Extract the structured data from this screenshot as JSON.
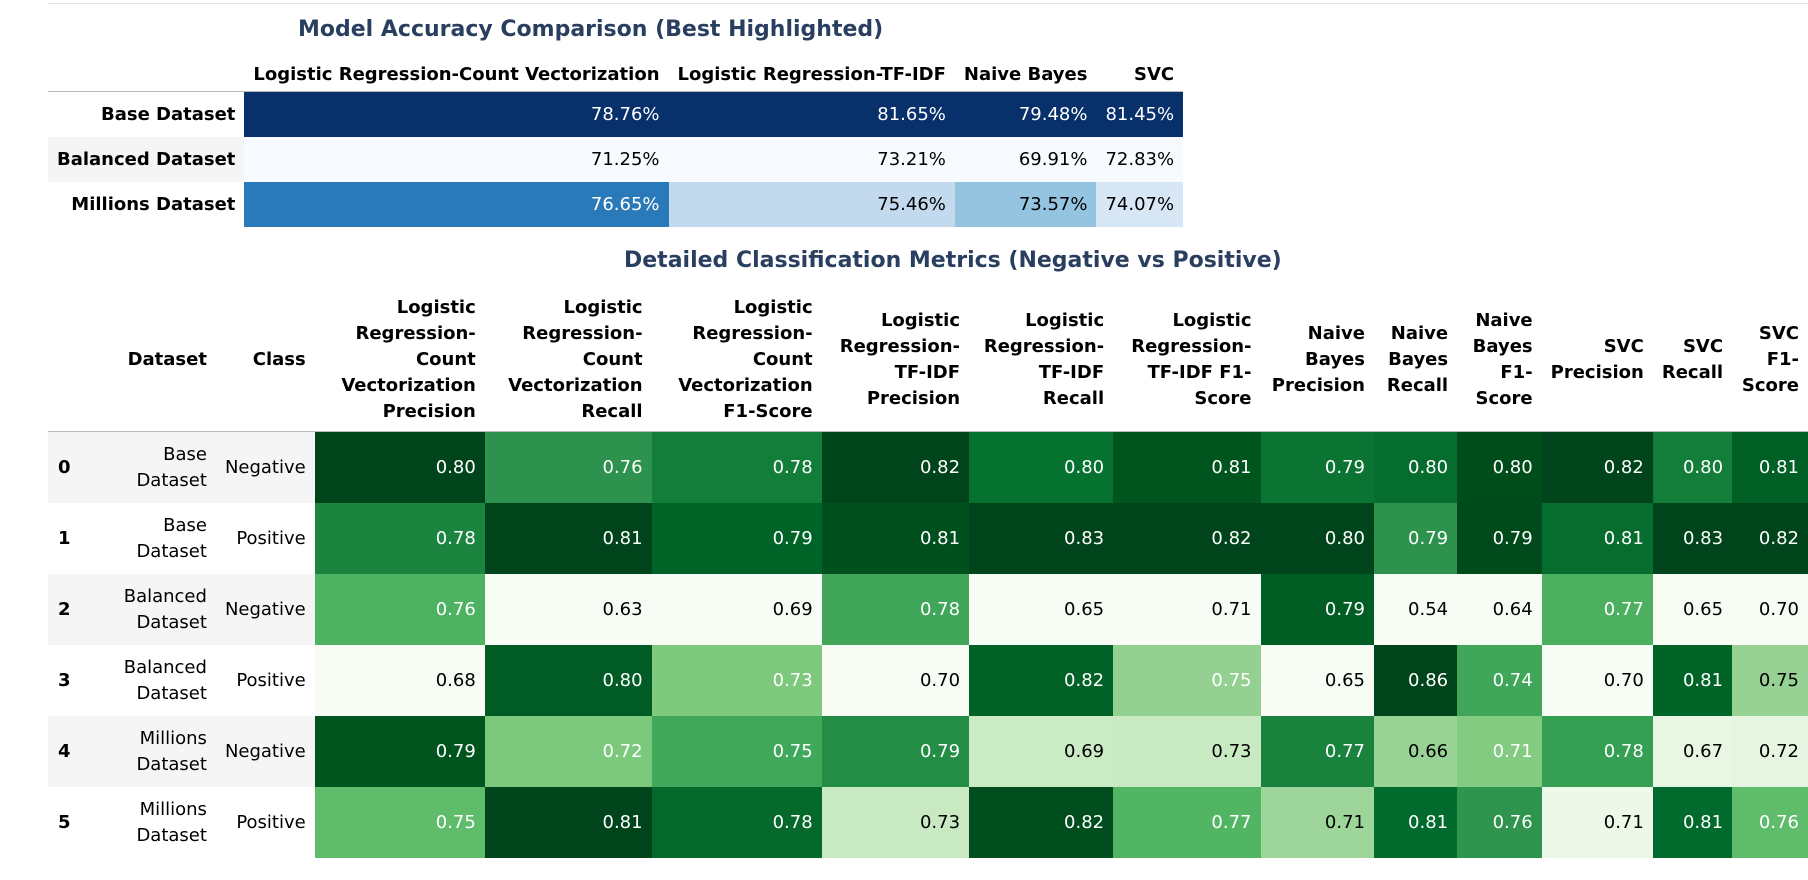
{
  "accuracy": {
    "caption": "Model Accuracy Comparison (Best Highlighted)",
    "columns": [
      "Logistic Regression-Count Vectorization",
      "Logistic Regression-TF-IDF",
      "Naive Bayes",
      "SVC"
    ],
    "rows": [
      {
        "label": "Base Dataset",
        "values": [
          "78.76%",
          "81.65%",
          "79.48%",
          "81.45%"
        ],
        "colors": [
          "#08306b",
          "#08306b",
          "#08306b",
          "#08306b"
        ],
        "light": [
          true,
          true,
          true,
          true
        ]
      },
      {
        "label": "Balanced Dataset",
        "values": [
          "71.25%",
          "73.21%",
          "69.91%",
          "72.83%"
        ],
        "colors": [
          "#f7fbff",
          "#f7fbff",
          "#f7fbff",
          "#f7fbff"
        ],
        "light": [
          false,
          false,
          false,
          false
        ]
      },
      {
        "label": "Millions Dataset",
        "values": [
          "76.65%",
          "75.46%",
          "73.57%",
          "74.07%"
        ],
        "colors": [
          "#2a7ab9",
          "#c2d9ee",
          "#94c4df",
          "#d8e7f5"
        ],
        "light": [
          true,
          false,
          false,
          false
        ]
      }
    ]
  },
  "metrics": {
    "caption": "Detailed Classification Metrics (Negative vs Positive)",
    "columns": [
      "Dataset",
      "Class",
      "Logistic Regression-Count Vectorization Precision",
      "Logistic Regression-Count Vectorization Recall",
      "Logistic Regression-Count Vectorization F1-Score",
      "Logistic Regression-TF-IDF Precision",
      "Logistic Regression-TF-IDF Recall",
      "Logistic Regression-TF-IDF F1-Score",
      "Naive Bayes Precision",
      "Naive Bayes Recall",
      "Naive Bayes F1-Score",
      "SVC Precision",
      "SVC Recall",
      "SVC F1-Score"
    ],
    "column_widths": [
      134,
      74,
      174,
      170,
      174,
      150,
      146,
      150,
      114,
      84,
      86,
      106,
      78,
      76
    ],
    "rows": [
      {
        "index": "0",
        "dataset": "Base Dataset",
        "class": "Negative",
        "values": [
          "0.80",
          "0.76",
          "0.78",
          "0.82",
          "0.80",
          "0.81",
          "0.79",
          "0.80",
          "0.80",
          "0.82",
          "0.80",
          "0.81"
        ],
        "colors": [
          "#00441b",
          "#2d924d",
          "#137e3a",
          "#00441b",
          "#067230",
          "#00551f",
          "#0c7433",
          "#056e2e",
          "#004d1c",
          "#00441b",
          "#137e3a",
          "#005f25"
        ]
      },
      {
        "index": "1",
        "dataset": "Base Dataset",
        "class": "Positive",
        "values": [
          "0.78",
          "0.81",
          "0.79",
          "0.81",
          "0.83",
          "0.82",
          "0.80",
          "0.79",
          "0.79",
          "0.81",
          "0.83",
          "0.82"
        ],
        "colors": [
          "#1b8540",
          "#00441b",
          "#006428",
          "#00501e",
          "#00441b",
          "#00441b",
          "#00441b",
          "#2c924c",
          "#004a1b",
          "#066d2e",
          "#00441b",
          "#00441b"
        ]
      },
      {
        "index": "2",
        "dataset": "Balanced Dataset",
        "class": "Negative",
        "values": [
          "0.76",
          "0.63",
          "0.69",
          "0.78",
          "0.65",
          "0.71",
          "0.79",
          "0.54",
          "0.64",
          "0.77",
          "0.65",
          "0.70"
        ],
        "colors": [
          "#4db261",
          "#f7fcf5",
          "#f7fcf5",
          "#40a75a",
          "#f7fcf5",
          "#f7fcf5",
          "#005e24",
          "#f7fcf5",
          "#f7fcf5",
          "#4db060",
          "#f7fcf5",
          "#f7fcf5"
        ]
      },
      {
        "index": "3",
        "dataset": "Balanced Dataset",
        "class": "Positive",
        "values": [
          "0.68",
          "0.80",
          "0.73",
          "0.70",
          "0.82",
          "0.75",
          "0.65",
          "0.86",
          "0.74",
          "0.70",
          "0.81",
          "0.75"
        ],
        "colors": [
          "#f7fcf5",
          "#005b24",
          "#7fc97f",
          "#f7fcf5",
          "#006227",
          "#94d091",
          "#f7fcf5",
          "#00441b",
          "#40a75a",
          "#f7fcf5",
          "#006427",
          "#97d294"
        ]
      },
      {
        "index": "4",
        "dataset": "Millions Dataset",
        "class": "Negative",
        "values": [
          "0.79",
          "0.72",
          "0.75",
          "0.79",
          "0.69",
          "0.73",
          "0.77",
          "0.66",
          "0.71",
          "0.78",
          "0.67",
          "0.72"
        ],
        "colors": [
          "#00551f",
          "#7cc87d",
          "#3fa85b",
          "#238c45",
          "#caebc4",
          "#c8e9c2",
          "#19823d",
          "#98d295",
          "#82cb81",
          "#35a053",
          "#e8f6e3",
          "#e6f5e1"
        ]
      },
      {
        "index": "5",
        "dataset": "Millions Dataset",
        "class": "Positive",
        "values": [
          "0.75",
          "0.81",
          "0.78",
          "0.73",
          "0.82",
          "0.77",
          "0.71",
          "0.81",
          "0.76",
          "0.71",
          "0.81",
          "0.76"
        ],
        "colors": [
          "#5ebc6b",
          "#00441b",
          "#05692b",
          "#c8e9c2",
          "#004e1e",
          "#52b563",
          "#9ed59b",
          "#006b2c",
          "#2e944e",
          "#edf8e9",
          "#006b2c",
          "#5fbc6b"
        ]
      }
    ]
  }
}
